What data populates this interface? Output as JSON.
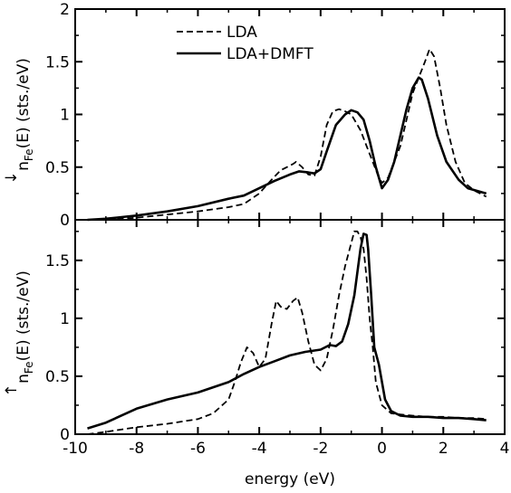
{
  "chart_data": [
    {
      "type": "line",
      "panel": "top",
      "xlabel": "",
      "ylabel_main": "n",
      "ylabel_arrow": "↓",
      "ylabel_sub": "Fe",
      "ylabel_rest": "(E) (sts./eV)",
      "xlim": [
        -10,
        4
      ],
      "ylim": [
        0,
        2
      ],
      "xticks": [
        -10,
        -8,
        -6,
        -4,
        -2,
        0,
        2,
        4
      ],
      "yticks": [
        0,
        0.5,
        1,
        1.5,
        2
      ],
      "ytick_labels": [
        "0",
        "0.5",
        "1",
        "1.5",
        "2"
      ],
      "legend": {
        "position": "top-left",
        "entries": [
          "LDA",
          "LDA+DMFT"
        ]
      },
      "series": [
        {
          "name": "LDA",
          "style": "dashed",
          "x": [
            -9.6,
            -9,
            -8,
            -7,
            -6,
            -5,
            -4.5,
            -4,
            -3.6,
            -3.3,
            -3.1,
            -2.9,
            -2.8,
            -2.6,
            -2.4,
            -2.2,
            -2,
            -1.8,
            -1.6,
            -1.4,
            -1.2,
            -1.0,
            -0.9,
            -0.7,
            -0.5,
            -0.3,
            -0.1,
            0.0,
            0.2,
            0.4,
            0.6,
            0.8,
            1.0,
            1.2,
            1.4,
            1.55,
            1.7,
            1.9,
            2.1,
            2.4,
            2.7,
            3.0,
            3.4
          ],
          "y": [
            0.0,
            0.0,
            0.02,
            0.05,
            0.08,
            0.12,
            0.15,
            0.25,
            0.38,
            0.47,
            0.5,
            0.53,
            0.55,
            0.5,
            0.43,
            0.42,
            0.6,
            0.9,
            1.03,
            1.05,
            1.03,
            1.0,
            0.95,
            0.85,
            0.7,
            0.55,
            0.4,
            0.35,
            0.4,
            0.55,
            0.7,
            0.95,
            1.2,
            1.35,
            1.5,
            1.62,
            1.55,
            1.25,
            0.9,
            0.55,
            0.35,
            0.28,
            0.22
          ]
        },
        {
          "name": "LDA+DMFT",
          "style": "solid",
          "x": [
            -9.6,
            -9,
            -8,
            -7,
            -6,
            -5,
            -4.5,
            -4,
            -3.5,
            -3,
            -2.7,
            -2.4,
            -2.2,
            -2,
            -1.8,
            -1.5,
            -1.2,
            -1.0,
            -0.8,
            -0.6,
            -0.4,
            -0.2,
            0.0,
            0.2,
            0.4,
            0.6,
            0.8,
            1.0,
            1.2,
            1.3,
            1.5,
            1.8,
            2.1,
            2.5,
            2.8,
            3.4
          ],
          "y": [
            0.0,
            0.01,
            0.04,
            0.08,
            0.13,
            0.2,
            0.23,
            0.3,
            0.37,
            0.43,
            0.46,
            0.45,
            0.44,
            0.48,
            0.65,
            0.9,
            1.0,
            1.04,
            1.02,
            0.95,
            0.75,
            0.5,
            0.3,
            0.38,
            0.55,
            0.8,
            1.05,
            1.25,
            1.35,
            1.33,
            1.15,
            0.8,
            0.55,
            0.38,
            0.3,
            0.25
          ]
        }
      ]
    },
    {
      "type": "line",
      "panel": "bottom",
      "xlabel": "energy (eV)",
      "ylabel_main": "n",
      "ylabel_arrow": "↑",
      "ylabel_sub": "Fe",
      "ylabel_rest": "(E) (sts./eV)",
      "xlim": [
        -10,
        4
      ],
      "ylim": [
        0,
        1.85
      ],
      "xticks": [
        -10,
        -8,
        -6,
        -4,
        -2,
        0,
        2,
        4
      ],
      "xtick_labels": [
        "-10",
        "-8",
        "-6",
        "-4",
        "-2",
        "0",
        "2",
        "4"
      ],
      "yticks": [
        0,
        0.5,
        1,
        1.5
      ],
      "ytick_labels": [
        "0",
        "0.5",
        "1",
        "1.5"
      ],
      "series": [
        {
          "name": "LDA",
          "style": "dashed",
          "x": [
            -9.6,
            -9,
            -8,
            -7,
            -6,
            -5.5,
            -5,
            -4.8,
            -4.6,
            -4.4,
            -4.2,
            -4.0,
            -3.8,
            -3.6,
            -3.45,
            -3.3,
            -3.1,
            -2.9,
            -2.75,
            -2.6,
            -2.4,
            -2.2,
            -2.0,
            -1.8,
            -1.6,
            -1.4,
            -1.2,
            -1.0,
            -0.9,
            -0.8,
            -0.7,
            -0.6,
            -0.5,
            -0.4,
            -0.3,
            -0.2,
            0.0,
            0.3,
            0.6,
            1.0,
            1.5,
            2.0,
            2.5,
            3.0,
            3.4
          ],
          "y": [
            0.0,
            0.02,
            0.06,
            0.09,
            0.13,
            0.18,
            0.3,
            0.45,
            0.62,
            0.75,
            0.7,
            0.58,
            0.65,
            0.95,
            1.15,
            1.1,
            1.08,
            1.15,
            1.18,
            1.05,
            0.8,
            0.6,
            0.55,
            0.65,
            0.9,
            1.2,
            1.45,
            1.65,
            1.75,
            1.75,
            1.7,
            1.6,
            1.35,
            1.0,
            0.75,
            0.45,
            0.25,
            0.18,
            0.17,
            0.16,
            0.15,
            0.15,
            0.14,
            0.14,
            0.13
          ]
        },
        {
          "name": "LDA+DMFT",
          "style": "solid",
          "x": [
            -9.6,
            -9,
            -8,
            -7,
            -6,
            -5,
            -4.5,
            -4,
            -3.5,
            -3,
            -2.5,
            -2,
            -1.7,
            -1.5,
            -1.3,
            -1.1,
            -0.9,
            -0.8,
            -0.7,
            -0.6,
            -0.5,
            -0.45,
            -0.35,
            -0.25,
            -0.1,
            0.0,
            0.1,
            0.3,
            0.6,
            1.0,
            1.5,
            2.0,
            2.5,
            3.0,
            3.4
          ],
          "y": [
            0.05,
            0.1,
            0.22,
            0.3,
            0.36,
            0.45,
            0.52,
            0.58,
            0.63,
            0.68,
            0.71,
            0.73,
            0.77,
            0.76,
            0.8,
            0.95,
            1.2,
            1.4,
            1.6,
            1.73,
            1.72,
            1.6,
            1.2,
            0.75,
            0.6,
            0.45,
            0.3,
            0.2,
            0.16,
            0.15,
            0.15,
            0.14,
            0.14,
            0.13,
            0.12
          ]
        }
      ]
    }
  ]
}
